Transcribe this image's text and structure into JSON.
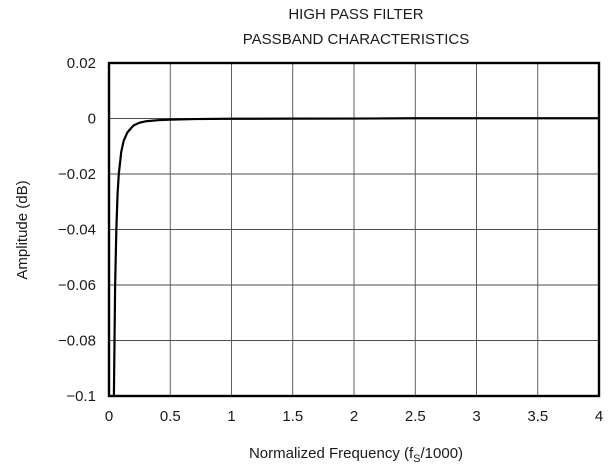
{
  "chart_data": {
    "type": "line",
    "title": [
      "HIGH PASS FILTER",
      "PASSBAND CHARACTERISTICS"
    ],
    "xlabel": "Normalized Frequency (f",
    "xlabel_sub": "S",
    "xlabel_end": "/1000)",
    "ylabel": "Amplitude (dB)",
    "xlim": [
      0,
      4
    ],
    "ylim": [
      -0.1,
      0.02
    ],
    "x_ticks": [
      0,
      0.5,
      1,
      1.5,
      2,
      2.5,
      3,
      3.5,
      4
    ],
    "x_tick_labels": [
      "0",
      "0.5",
      "1",
      "1.5",
      "2",
      "2.5",
      "3",
      "3.5",
      "4"
    ],
    "y_ticks": [
      0.02,
      0,
      -0.02,
      -0.04,
      -0.06,
      -0.08,
      -0.1
    ],
    "y_tick_labels": [
      "0.02",
      "0",
      "−0.02",
      "−0.04",
      "−0.06",
      "−0.08",
      "−0.1"
    ],
    "grid": true,
    "legend": "none",
    "line_color": "#000000",
    "series": [
      {
        "x": [
          0.04,
          0.045,
          0.05,
          0.06,
          0.07,
          0.08,
          0.1,
          0.12,
          0.15,
          0.2,
          0.25,
          0.3,
          0.4,
          0.5,
          0.7,
          1,
          1.5,
          2,
          2.5,
          3,
          3.5,
          4
        ],
        "values": [
          -0.1,
          -0.08,
          -0.06,
          -0.04,
          -0.027,
          -0.02,
          -0.012,
          -0.008,
          -0.005,
          -0.0025,
          -0.0015,
          -0.001,
          -0.0006,
          -0.0004,
          -0.0002,
          -0.0001,
          -5e-05,
          -3e-05,
          0.0001,
          0.0001,
          0.0001,
          0.0001
        ]
      }
    ]
  }
}
